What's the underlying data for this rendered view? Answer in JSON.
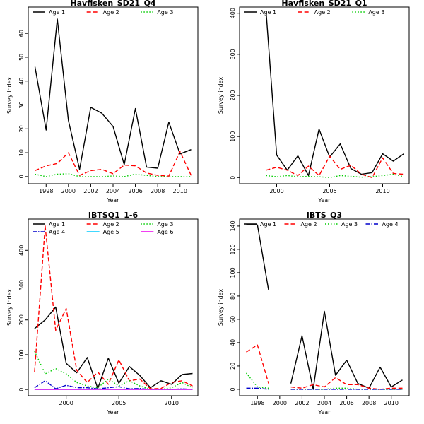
{
  "chart_data": [
    {
      "type": "line",
      "title": "Havfisken_SD21_Q4",
      "xlabel": "Year",
      "ylabel": "Survey index",
      "xlim": [
        1996.4,
        2011.6
      ],
      "ylim": [
        -3,
        71
      ],
      "xticks": [
        1998,
        2000,
        2002,
        2004,
        2006,
        2008,
        2010
      ],
      "yticks": [
        0,
        10,
        20,
        30,
        40,
        50,
        60
      ],
      "legend": {
        "position": "top",
        "columns": 3
      },
      "series": [
        {
          "name": "Age 1",
          "color": "#000000",
          "dash": "solid",
          "x": [
            1997,
            1998,
            1999,
            2000,
            2001,
            2002,
            2003,
            2004,
            2005,
            2006,
            2007,
            2008,
            2009,
            2010,
            2011
          ],
          "y": [
            46,
            19.5,
            66,
            23.5,
            3,
            29,
            26.5,
            21,
            5,
            28.5,
            4,
            3.5,
            22.8,
            9.5,
            11.3
          ]
        },
        {
          "name": "Age 2",
          "color": "#ff0000",
          "dash": "dashed",
          "x": [
            1997,
            1998,
            1999,
            2000,
            2001,
            2002,
            2003,
            2004,
            2005,
            2006,
            2007,
            2008,
            2009,
            2010,
            2011
          ],
          "y": [
            2.5,
            4.5,
            5.5,
            10,
            0.5,
            2.5,
            3,
            1.2,
            4.8,
            4.5,
            1.5,
            0.5,
            0.2,
            10.5,
            0.5
          ]
        },
        {
          "name": "Age 3",
          "color": "#00cc00",
          "dash": "dotted",
          "x": [
            1997,
            1998,
            1999,
            2000,
            2001,
            2002,
            2003,
            2004,
            2005,
            2006,
            2007,
            2008,
            2009,
            2010,
            2011
          ],
          "y": [
            1,
            0,
            1,
            1.2,
            0,
            0,
            0,
            0.3,
            0,
            1,
            0.5,
            0,
            0,
            0,
            0
          ]
        }
      ]
    },
    {
      "type": "line",
      "title": "Havfisken_SD21_Q1",
      "xlabel": "Year",
      "ylabel": "Survey index",
      "xlim": [
        1996.5,
        2012.5
      ],
      "ylim": [
        -15,
        415
      ],
      "xticks": [
        2000,
        2005,
        2010
      ],
      "yticks": [
        0,
        100,
        200,
        300,
        400
      ],
      "legend": {
        "position": "top",
        "columns": 3
      },
      "series": [
        {
          "name": "Age 1",
          "color": "#000000",
          "dash": "solid",
          "x": [
            1999,
            2000,
            2001,
            2002,
            2003,
            2004,
            2005,
            2006,
            2007,
            2008,
            2009,
            2010,
            2011,
            2012
          ],
          "y": [
            405,
            55,
            18,
            53,
            5,
            118,
            50,
            82,
            22,
            8,
            12,
            58,
            40,
            58
          ]
        },
        {
          "name": "Age 2",
          "color": "#ff0000",
          "dash": "dashed",
          "x": [
            1999,
            2000,
            2001,
            2002,
            2003,
            2004,
            2005,
            2006,
            2007,
            2008,
            2009,
            2010,
            2011,
            2012
          ],
          "y": [
            18,
            25,
            18,
            5,
            28,
            5,
            52,
            20,
            30,
            8,
            0,
            48,
            10,
            8
          ]
        },
        {
          "name": "Age 3",
          "color": "#00cc00",
          "dash": "dotted",
          "x": [
            1999,
            2000,
            2001,
            2002,
            2003,
            2004,
            2005,
            2006,
            2007,
            2008,
            2009,
            2010,
            2011,
            2012
          ],
          "y": [
            5,
            2,
            5,
            2,
            3,
            2,
            0,
            5,
            3,
            1,
            2,
            5,
            8,
            2
          ]
        }
      ]
    },
    {
      "type": "line",
      "title": "IBTSQ1_1-6",
      "xlabel": "Year",
      "ylabel": "Survey index",
      "xlim": [
        1996.4,
        2012.5
      ],
      "ylim": [
        -18,
        490
      ],
      "xticks": [
        2000,
        2005,
        2010
      ],
      "yticks": [
        0,
        100,
        200,
        300,
        400
      ],
      "legend": {
        "position": "top",
        "columns": 3
      },
      "series": [
        {
          "name": "Age 1",
          "color": "#000000",
          "dash": "solid",
          "x": [
            1997,
            1998,
            1999,
            2000,
            2001,
            2002,
            2003,
            2004,
            2005,
            2006,
            2007,
            2008,
            2009,
            2010,
            2011,
            2012
          ],
          "y": [
            175,
            200,
            237,
            75,
            48,
            92,
            3,
            90,
            18,
            66,
            40,
            5,
            25,
            15,
            43,
            46
          ]
        },
        {
          "name": "Age 2",
          "color": "#ff0000",
          "dash": "dashed",
          "x": [
            1997,
            1998,
            1999,
            2000,
            2001,
            2002,
            2003,
            2004,
            2005,
            2006,
            2007,
            2008,
            2009,
            2010,
            2011,
            2012
          ],
          "y": [
            50,
            470,
            170,
            233,
            55,
            20,
            50,
            15,
            85,
            25,
            30,
            2,
            3,
            20,
            25,
            10
          ]
        },
        {
          "name": "Age 3",
          "color": "#00cc00",
          "dash": "dotted",
          "x": [
            1997,
            1998,
            1999,
            2000,
            2001,
            2002,
            2003,
            2004,
            2005,
            2006,
            2007,
            2008,
            2009,
            2010,
            2011,
            2012
          ],
          "y": [
            110,
            45,
            60,
            45,
            20,
            10,
            5,
            30,
            10,
            25,
            10,
            0,
            0,
            5,
            20,
            5
          ]
        },
        {
          "name": "Age 4",
          "color": "#0000cc",
          "dash": "dashdot",
          "x": [
            1997,
            1998,
            1999,
            2000,
            2001,
            2002,
            2003,
            2004,
            2005,
            2006,
            2007,
            2008,
            2009,
            2010,
            2011,
            2012
          ],
          "y": [
            5,
            25,
            2,
            12,
            5,
            5,
            2,
            5,
            8,
            2,
            3,
            0,
            0,
            0,
            2,
            0
          ]
        },
        {
          "name": "Age 5",
          "color": "#00ccff",
          "dash": "solid",
          "x": [
            1997,
            1998,
            1999,
            2000,
            2001,
            2002,
            2003,
            2004,
            2005,
            2006,
            2007,
            2008,
            2009,
            2010,
            2011,
            2012
          ],
          "y": [
            0,
            0,
            0,
            0,
            0,
            0,
            0,
            0,
            0,
            0,
            0,
            0,
            0,
            0,
            0,
            0
          ]
        },
        {
          "name": "Age 6",
          "color": "#ee00ee",
          "dash": "solid",
          "x": [
            1997,
            1998,
            1999,
            2000,
            2001,
            2002,
            2003,
            2004,
            2005,
            2006,
            2007,
            2008,
            2009,
            2010,
            2011,
            2012
          ],
          "y": [
            0,
            0,
            0,
            0,
            0,
            0,
            0,
            0,
            0,
            0,
            0,
            0,
            0,
            0,
            0,
            0
          ]
        }
      ]
    },
    {
      "type": "line",
      "title": "IBTS_Q3",
      "xlabel": "Year",
      "ylabel": "Survey index",
      "xlim": [
        1996.4,
        2011.6
      ],
      "ylim": [
        -5.5,
        146
      ],
      "xticks": [
        1998,
        2000,
        2002,
        2004,
        2006,
        2008,
        2010
      ],
      "yticks": [
        0,
        20,
        40,
        60,
        80,
        100,
        120,
        140
      ],
      "legend": {
        "position": "top",
        "columns": 4
      },
      "series": [
        {
          "name": "Age 1",
          "color": "#000000",
          "dash": "solid",
          "segments": [
            {
              "x": [
                1997,
                1998,
                1999
              ],
              "y": [
                141,
                141,
                85
              ]
            },
            {
              "x": [
                2001,
                2002,
                2003,
                2004,
                2005,
                2006,
                2007,
                2008,
                2009,
                2010,
                2011
              ],
              "y": [
                5,
                46,
                0,
                67,
                12,
                25,
                5,
                1,
                19,
                2,
                8
              ]
            }
          ]
        },
        {
          "name": "Age 2",
          "color": "#ff0000",
          "dash": "dashed",
          "segments": [
            {
              "x": [
                1997,
                1998,
                1999
              ],
              "y": [
                32,
                38,
                5
              ]
            },
            {
              "x": [
                2001,
                2002,
                2003,
                2004,
                2005,
                2006,
                2007,
                2008,
                2009,
                2010,
                2011
              ],
              "y": [
                2,
                1,
                4,
                2,
                10,
                4,
                4,
                1,
                0,
                1,
                1
              ]
            }
          ]
        },
        {
          "name": "Age 3",
          "color": "#00cc00",
          "dash": "dotted",
          "segments": [
            {
              "x": [
                1997,
                1998,
                1999
              ],
              "y": [
                14,
                2,
                1
              ]
            },
            {
              "x": [
                2001,
                2002,
                2003,
                2004,
                2005,
                2006,
                2007,
                2008,
                2009,
                2010,
                2011
              ],
              "y": [
                0,
                0,
                0,
                0,
                1,
                1,
                0,
                0,
                0,
                0,
                0
              ]
            }
          ]
        },
        {
          "name": "Age 4",
          "color": "#0000cc",
          "dash": "dashdot",
          "segments": [
            {
              "x": [
                1997,
                1998,
                1999
              ],
              "y": [
                1,
                1,
                0
              ]
            },
            {
              "x": [
                2001,
                2002,
                2003,
                2004,
                2005,
                2006,
                2007,
                2008,
                2009,
                2010,
                2011
              ],
              "y": [
                0,
                0,
                0,
                0,
                0,
                0,
                0,
                0,
                0,
                0,
                0
              ]
            }
          ]
        }
      ]
    }
  ]
}
